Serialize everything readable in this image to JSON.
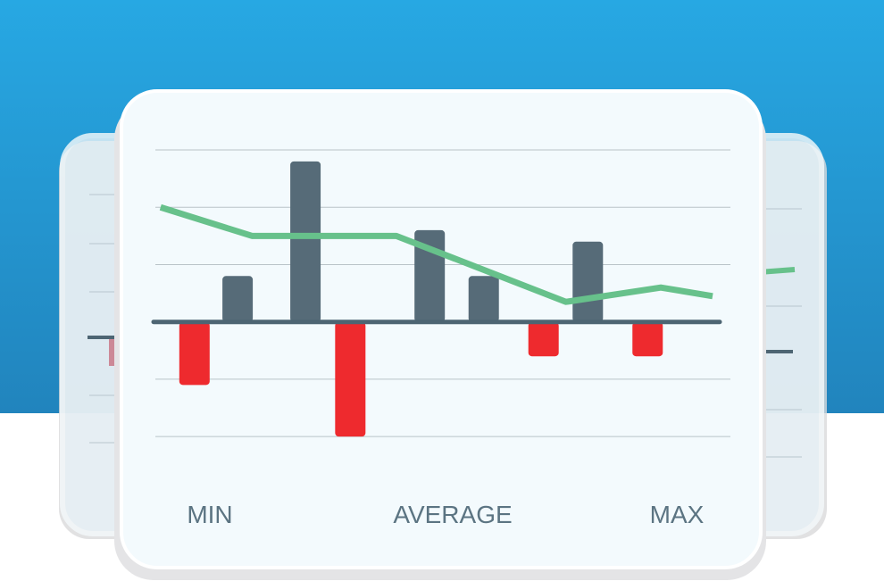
{
  "chart_data": {
    "type": "bar",
    "labels": [
      "MIN",
      "AVERAGE",
      "MAX"
    ],
    "xlim": [
      0,
      10
    ],
    "ylim": [
      -2.2,
      3
    ],
    "yticks": [
      -2,
      -1,
      0,
      1,
      2,
      3
    ],
    "grid": true,
    "series": [
      {
        "type": "bar",
        "color": "#566b78",
        "negative_color": "#ee2a2e",
        "x": [
          0.68,
          1.43,
          2.61,
          3.39,
          4.77,
          5.71,
          6.75,
          7.52,
          8.56
        ],
        "values": [
          -1.1,
          0.8,
          2.8,
          -2,
          1.6,
          0.8,
          -0.6,
          1.4,
          -0.6
        ]
      },
      {
        "type": "line",
        "color": "#67c18b",
        "x": [
          0.09,
          1.68,
          4.19,
          7.14,
          8.79,
          9.69
        ],
        "values": [
          2,
          1.5,
          1.5,
          0.35,
          0.6,
          0.45
        ]
      }
    ]
  }
}
